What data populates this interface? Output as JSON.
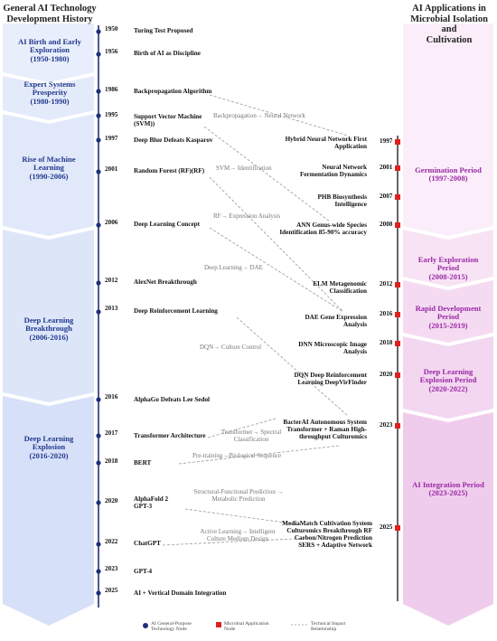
{
  "headers": {
    "left": [
      "General AI Technology",
      "Development History"
    ],
    "right": [
      "AI Applications in",
      "Microbial Isolation and",
      "Cultivation"
    ]
  },
  "left_periods": [
    {
      "title": "AI Birth and Early Exploration",
      "range": "(1950-1980)"
    },
    {
      "title": "Expert Systems Prosperity",
      "range": "(1980-1990)"
    },
    {
      "title": "Rise of Machine Learning",
      "range": "(1990-2006)"
    },
    {
      "title": "Deep Learning Breakthrough",
      "range": "(2006-2016)"
    },
    {
      "title": "Deep Learning Explosion",
      "range": "(2016-2020)"
    }
  ],
  "right_periods": [
    {
      "title": "Germination Period",
      "range": "(1997-2008)"
    },
    {
      "title": "Early Exploration Period",
      "range": "(2008-2015)"
    },
    {
      "title": "Rapid Development Period",
      "range": "(2015-2019)"
    },
    {
      "title": "Deep Learning Explosion Period",
      "range": "(2020-2022)"
    },
    {
      "title": "AI Integration Period",
      "range": "(2023-2025)"
    }
  ],
  "ai_nodes": [
    {
      "year": "1950",
      "label": "Turing Test Proposed"
    },
    {
      "year": "1956",
      "label": "Birth of AI as Discipline"
    },
    {
      "year": "1986",
      "label": "Backpropagation Algorithm"
    },
    {
      "year": "1995",
      "label": "Support Vector Machine (SVM))"
    },
    {
      "year": "1997",
      "label": "Deep Blue Defeats Kasparov"
    },
    {
      "year": "2001",
      "label": "Random Forest (RF)(RF)"
    },
    {
      "year": "2006",
      "label": "Deep Learning Concept"
    },
    {
      "year": "2012",
      "label": "AlexNet Breakthrough"
    },
    {
      "year": "2013",
      "label": "Deep Reinforcement Learning"
    },
    {
      "year": "2016",
      "label": "AlphaGo Defeats Lee Sedol"
    },
    {
      "year": "2017",
      "label": "Transformer Architecture"
    },
    {
      "year": "2018",
      "label": "BERT"
    },
    {
      "year": "2020",
      "label": "AlphaFold 2 GPT-3"
    },
    {
      "year": "2022",
      "label": "ChatGPT"
    },
    {
      "year": "2023",
      "label": "GPT-4"
    },
    {
      "year": "2025",
      "label": "AI + Vertical Domain Integration"
    }
  ],
  "micro_nodes": [
    {
      "year": "1997",
      "label": "Hybrid Neural Network First Application"
    },
    {
      "year": "2001",
      "label": "Neural Network Fermentation Dynamics"
    },
    {
      "year": "2007",
      "label": "PHB Biosynthesis Intelligence"
    },
    {
      "year": "2008",
      "label": "ANN Genus-wide Species Identification 85-90% accuracy"
    },
    {
      "year": "2012",
      "label": "ELM Metagenomic Classification"
    },
    {
      "year": "2016",
      "label": "DAE Gene Expression Analysis"
    },
    {
      "year": "2018",
      "label": "DNN Microscopic Image Analysis"
    },
    {
      "year": "2020",
      "label": "DQN Deep Reinforcement Learning DeepVirFinder"
    },
    {
      "year": "2023",
      "label": "BacterAI Autonomous System Transformer + Raman High-throughput Culturomics"
    },
    {
      "year": "2025",
      "label": "MediaMatch Cultivation System Culturomics Breakthrough RF Carbon/Nitrogen Prediction SERS + Adaptive Network"
    }
  ],
  "impacts": [
    "Backpropagation→ Neural Network",
    "SVM→ Identification",
    "RF→ Expression Analysis",
    "Deep Learning→ DAE",
    "DQN→ Culture Control",
    "Transformer→ Spectral Classification",
    "Pre-training→Biological Sequence",
    "Structural-Functional Prediction → Metabolic Prediction",
    "Active Learning→ Intelligent Culture Medium Design"
  ],
  "legend": {
    "ai": "AI General-Purpose Technology Node",
    "micro": "Microbial Application Node",
    "impact": "Technical Impact Relationship"
  },
  "colors": {
    "ai_node": "#1f2f7a",
    "micro_node": "#e02020",
    "left_band": "#dbe4f8",
    "right_band": "#f4cdee",
    "impact_line": "#999999"
  }
}
